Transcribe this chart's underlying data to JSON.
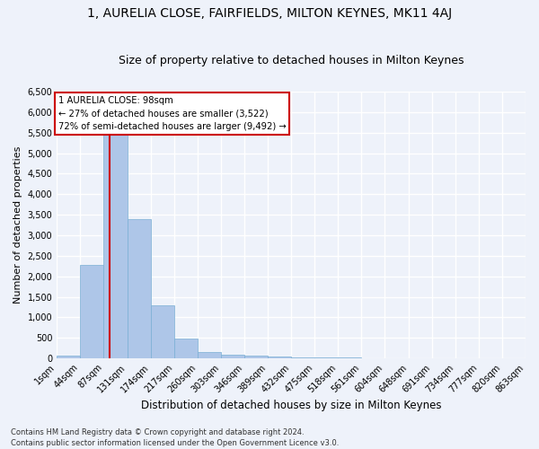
{
  "title": "1, AURELIA CLOSE, FAIRFIELDS, MILTON KEYNES, MK11 4AJ",
  "subtitle": "Size of property relative to detached houses in Milton Keynes",
  "xlabel": "Distribution of detached houses by size in Milton Keynes",
  "ylabel": "Number of detached properties",
  "footer_line1": "Contains HM Land Registry data © Crown copyright and database right 2024.",
  "footer_line2": "Contains public sector information licensed under the Open Government Licence v3.0.",
  "annotation_title": "1 AURELIA CLOSE: 98sqm",
  "annotation_line2": "← 27% of detached houses are smaller (3,522)",
  "annotation_line3": "72% of semi-detached houses are larger (9,492) →",
  "property_size": 98,
  "bin_edges": [
    1,
    44,
    87,
    131,
    174,
    217,
    260,
    303,
    346,
    389,
    432,
    475,
    518,
    561,
    604,
    648,
    691,
    734,
    777,
    820,
    863
  ],
  "bin_counts": [
    75,
    2280,
    5450,
    3390,
    1290,
    480,
    160,
    85,
    60,
    45,
    30,
    25,
    20,
    10,
    8,
    5,
    4,
    3,
    2,
    1
  ],
  "bar_color": "#aec6e8",
  "bar_edgecolor": "#7aafd4",
  "vline_color": "#cc0000",
  "vline_x": 98,
  "annotation_box_color": "#cc0000",
  "background_color": "#eef2fa",
  "grid_color": "#ffffff",
  "ylim": [
    0,
    6500
  ],
  "yticks": [
    0,
    500,
    1000,
    1500,
    2000,
    2500,
    3000,
    3500,
    4000,
    4500,
    5000,
    5500,
    6000,
    6500
  ],
  "title_fontsize": 10,
  "subtitle_fontsize": 9,
  "ylabel_fontsize": 8,
  "xlabel_fontsize": 8.5,
  "tick_fontsize": 7,
  "footer_fontsize": 6
}
